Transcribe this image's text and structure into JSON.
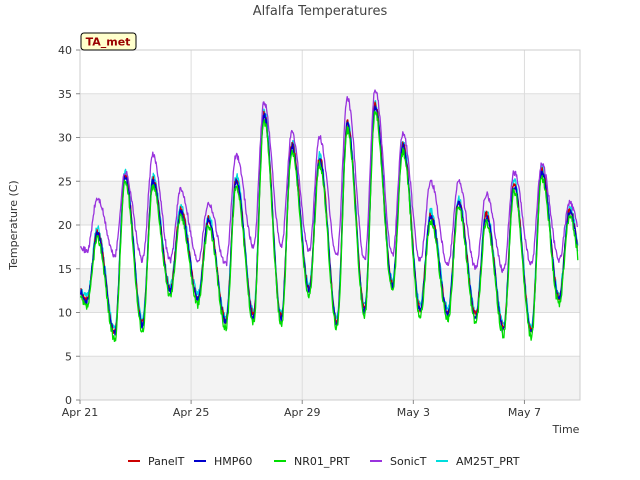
{
  "chart_data": {
    "type": "line",
    "title": "Alfalfa Temperatures",
    "xlabel": "Time",
    "ylabel": "Temperature (C)",
    "badge": "TA_met",
    "ylim": [
      0,
      40
    ],
    "yticks": [
      0,
      5,
      10,
      15,
      20,
      25,
      30,
      35,
      40
    ],
    "xlim": [
      "2024-04-21",
      "2024-05-09"
    ],
    "xticks": [
      {
        "label": "Apr 21",
        "day": 0
      },
      {
        "label": "Apr 25",
        "day": 4
      },
      {
        "label": "Apr 29",
        "day": 8
      },
      {
        "label": "May 3",
        "day": 12
      },
      {
        "label": "May 7",
        "day": 16
      }
    ],
    "grid": true,
    "legend_position": "bottom",
    "series": [
      {
        "name": "PanelT",
        "color": "#cc0000"
      },
      {
        "name": "HMP60",
        "color": "#0000cc"
      },
      {
        "name": "NR01_PRT",
        "color": "#00dd00"
      },
      {
        "name": "SonicT",
        "color": "#9933dd"
      },
      {
        "name": "AM25T_PRT",
        "color": "#00dddd"
      }
    ],
    "daily_min": [
      11.2,
      7.5,
      8.5,
      12.5,
      11.5,
      8.8,
      9.5,
      9.2,
      12.5,
      8.8,
      10.2,
      13.0,
      10.2,
      9.8,
      9.5,
      8.0,
      7.8,
      11.5
    ],
    "daily_max": [
      19.0,
      25.5,
      25.0,
      21.5,
      20.5,
      25.0,
      32.5,
      29.0,
      27.5,
      31.5,
      33.5,
      29.0,
      21.0,
      22.5,
      21.0,
      24.5,
      26.0,
      21.5
    ],
    "sonic_min": [
      17.0,
      16.5,
      16.0,
      16.0,
      16.0,
      15.5,
      17.5,
      17.5,
      17.0,
      16.5,
      16.0,
      16.5,
      16.0,
      15.5,
      15.0,
      14.8,
      15.5,
      16.0
    ],
    "sonic_max": [
      23.0,
      26.0,
      28.0,
      24.0,
      22.5,
      28.0,
      34.0,
      30.5,
      30.0,
      34.5,
      35.5,
      30.5,
      25.0,
      25.0,
      23.5,
      26.0,
      27.0,
      22.5
    ]
  }
}
